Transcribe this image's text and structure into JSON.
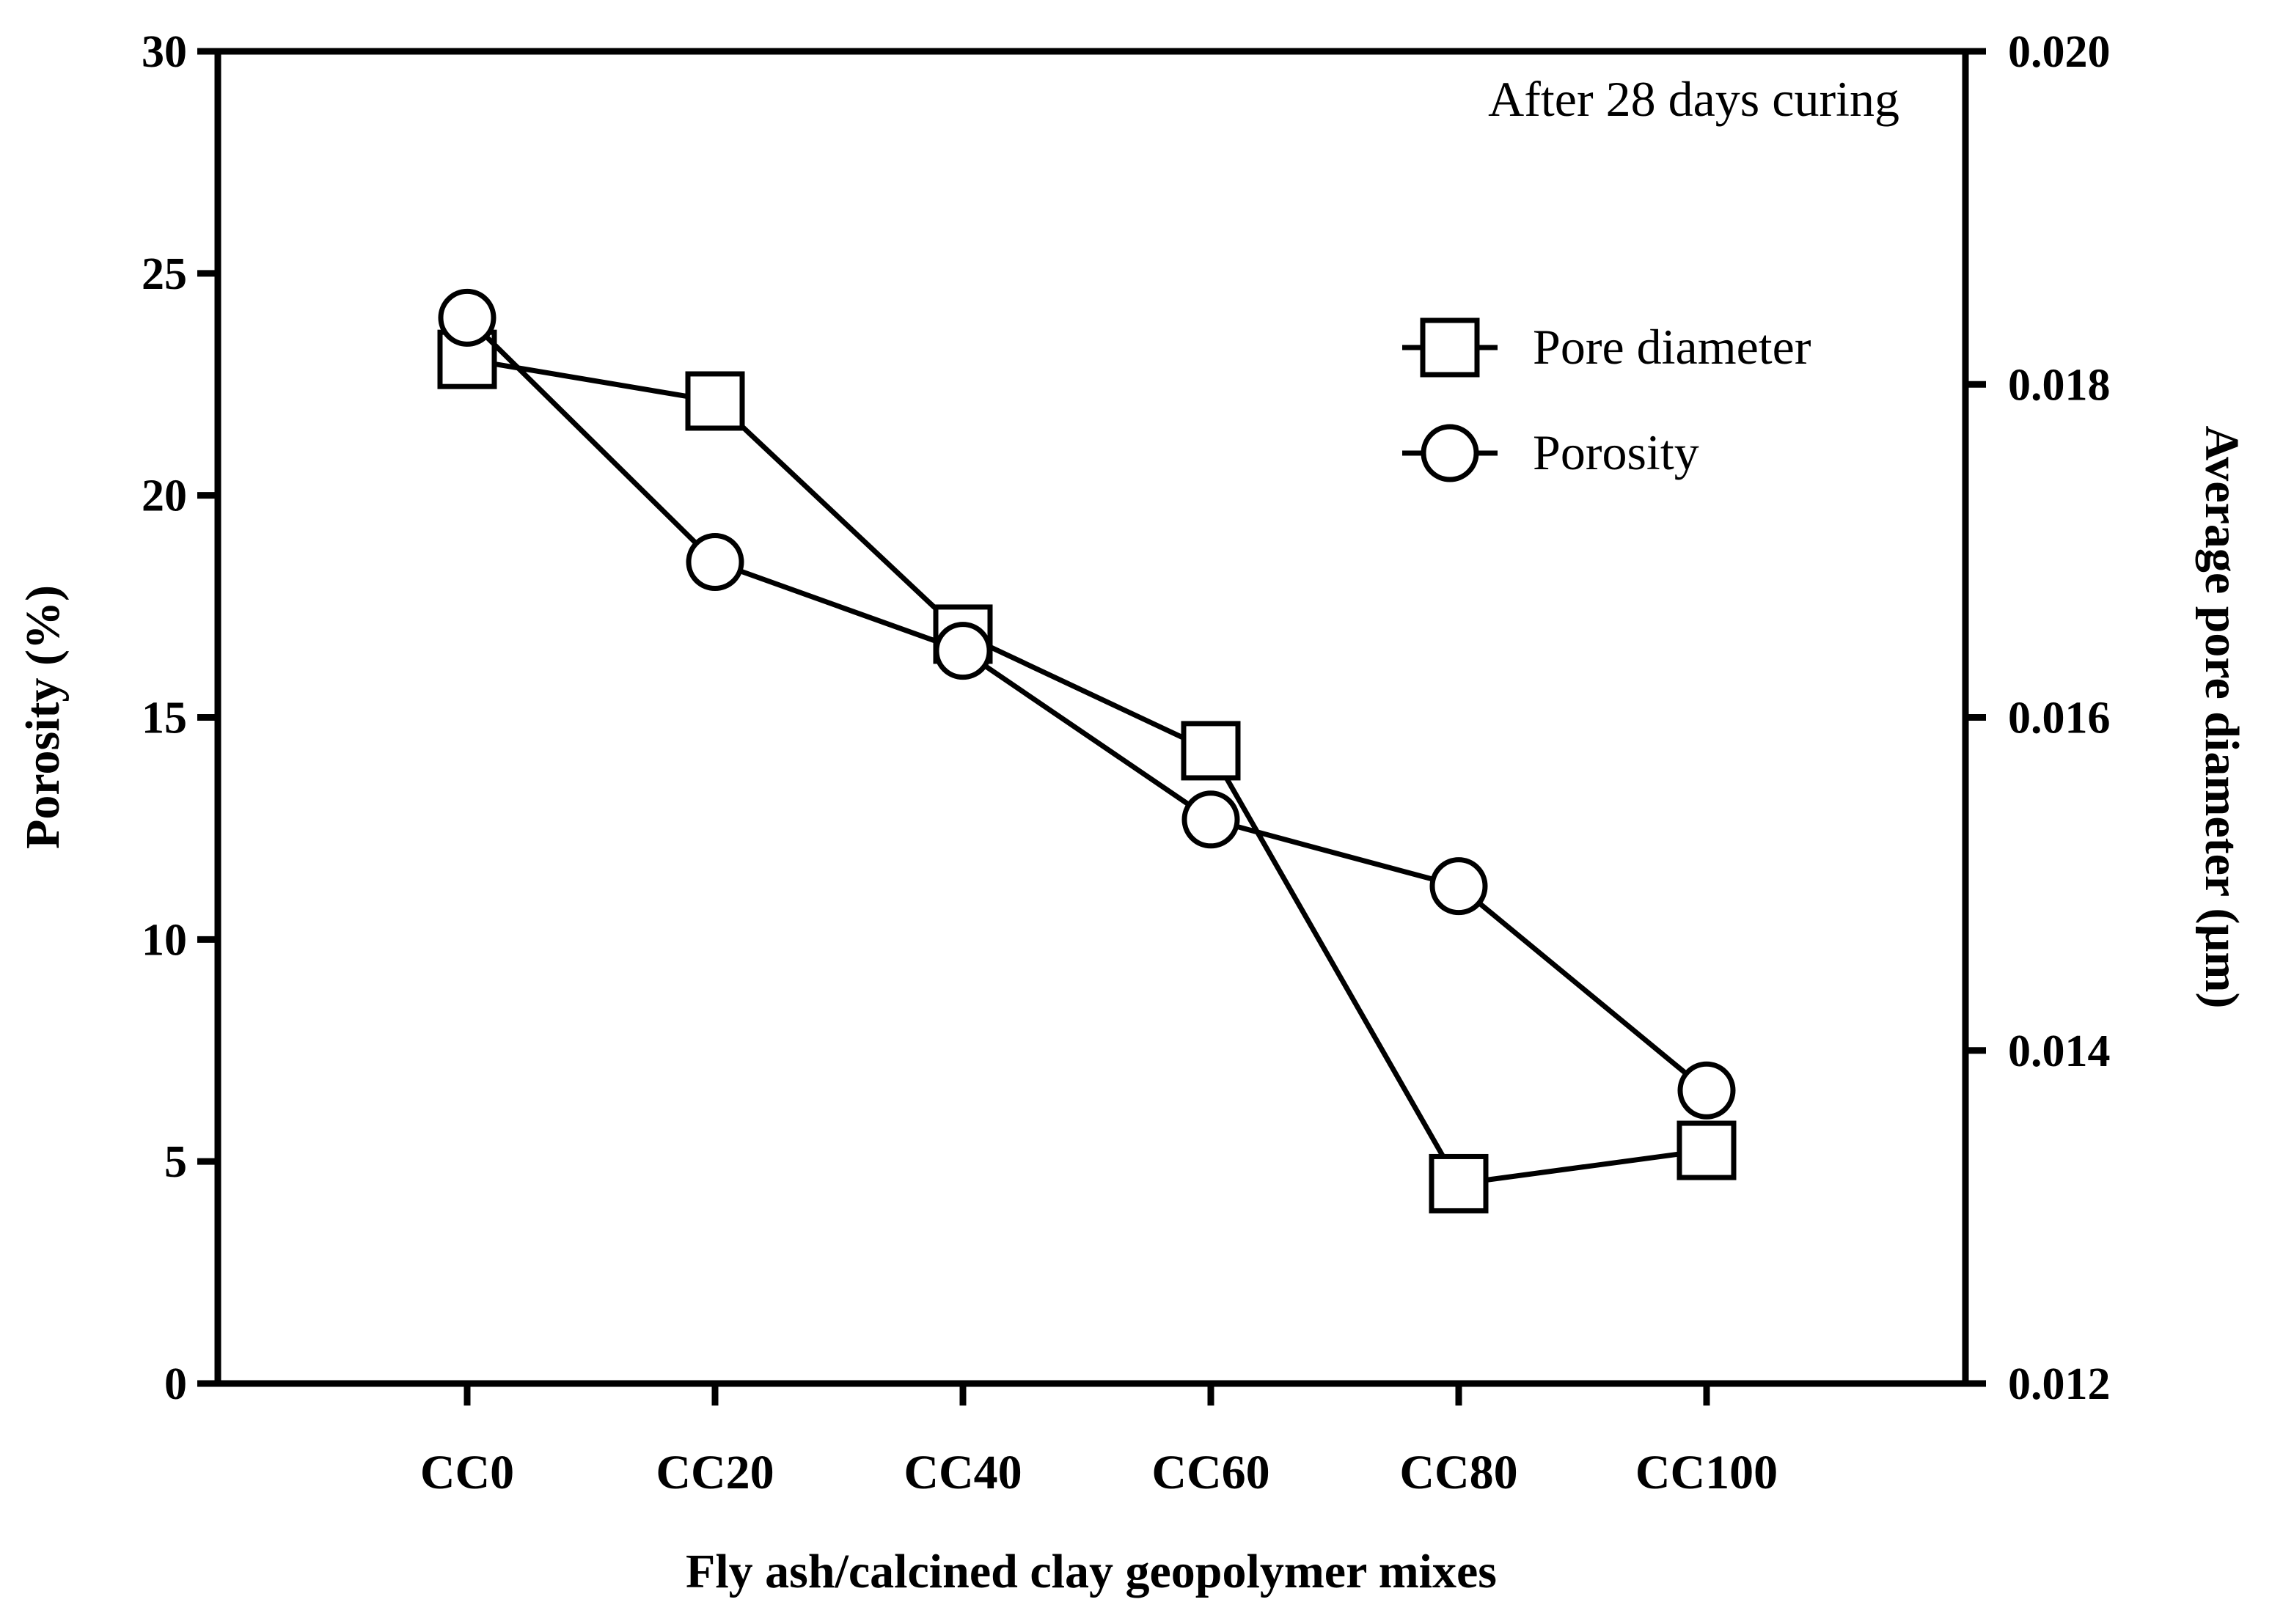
{
  "chart_data": {
    "type": "line",
    "xlabel": "Fly ash/calcined clay geopolymer mixes",
    "ylabel_left": "Porosity (%)",
    "ylabel_right": "Average pore diameter (µm)",
    "annotation": "After 28 days curing",
    "categories": [
      "CC0",
      "CC20",
      "CC40",
      "CC60",
      "CC80",
      "CC100"
    ],
    "y_left": {
      "range": [
        0,
        30
      ],
      "ticks": [
        "0",
        "5",
        "10",
        "15",
        "20",
        "25",
        "30"
      ]
    },
    "y_right": {
      "range": [
        0.012,
        0.02
      ],
      "ticks": [
        "0.012",
        "0.014",
        "0.016",
        "0.018",
        "0.020"
      ]
    },
    "series": [
      {
        "name": "Pore diameter",
        "marker": "square",
        "axis": "right",
        "values": [
          0.01815,
          0.0179,
          0.0165,
          0.0158,
          0.0132,
          0.0134
        ]
      },
      {
        "name": "Porosity",
        "marker": "circle",
        "axis": "left",
        "values": [
          24.0,
          18.5,
          16.5,
          12.7,
          11.2,
          6.6
        ]
      }
    ],
    "legend": {
      "position": "top-right",
      "entries": [
        "Pore diameter",
        "Porosity"
      ]
    },
    "grid": false
  }
}
